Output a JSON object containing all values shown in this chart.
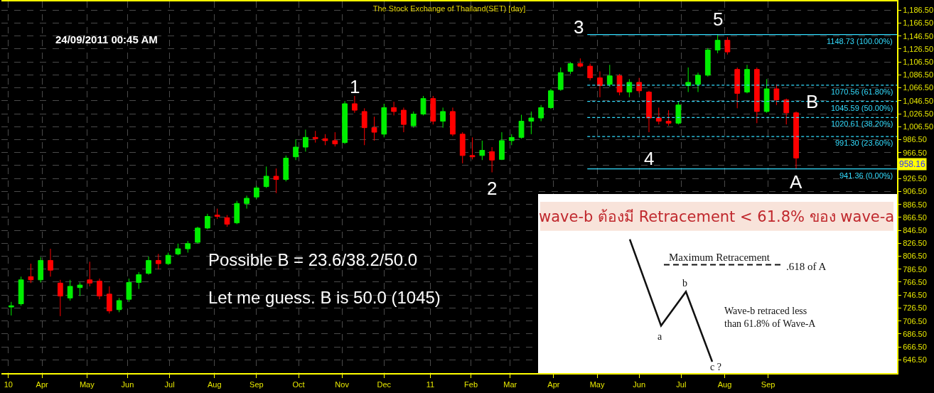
{
  "chart_data": {
    "type": "candlestick",
    "title": "The Stock Exchange of Thailand(SET) [day]",
    "x": [
      "2010-03-10",
      "2010-03-17",
      "2010-03-24",
      "2010-03-31",
      "2010-04-07",
      "2010-04-14",
      "2010-04-21",
      "2010-04-28",
      "2010-05-05",
      "2010-05-12",
      "2010-05-19",
      "2010-05-26",
      "2010-06-02",
      "2010-06-09",
      "2010-06-16",
      "2010-06-23",
      "2010-06-30",
      "2010-07-07",
      "2010-07-14",
      "2010-07-21",
      "2010-07-28",
      "2010-08-04",
      "2010-08-11",
      "2010-08-18",
      "2010-08-25",
      "2010-09-01",
      "2010-09-08",
      "2010-09-15",
      "2010-09-22",
      "2010-09-29",
      "2010-10-06",
      "2010-10-13",
      "2010-10-20",
      "2010-10-27",
      "2010-11-03",
      "2010-11-10",
      "2010-11-17",
      "2010-11-24",
      "2010-12-01",
      "2010-12-08",
      "2010-12-15",
      "2010-12-22",
      "2010-12-29",
      "2011-01-05",
      "2011-01-12",
      "2011-01-19",
      "2011-01-26",
      "2011-02-02",
      "2011-02-09",
      "2011-02-16",
      "2011-02-23",
      "2011-03-02",
      "2011-03-09",
      "2011-03-16",
      "2011-03-23",
      "2011-03-30",
      "2011-04-06",
      "2011-04-13",
      "2011-04-20",
      "2011-04-27",
      "2011-05-04",
      "2011-05-11",
      "2011-05-18",
      "2011-05-25",
      "2011-06-01",
      "2011-06-08",
      "2011-06-15",
      "2011-06-22",
      "2011-06-29",
      "2011-07-06",
      "2011-07-13",
      "2011-07-20",
      "2011-07-27",
      "2011-08-03",
      "2011-08-10",
      "2011-08-17",
      "2011-08-24",
      "2011-08-31",
      "2011-09-07",
      "2011-09-14",
      "2011-09-21"
    ],
    "ohlc": [
      [
        728,
        736,
        715,
        730
      ],
      [
        733,
        775,
        730,
        770
      ],
      [
        775,
        795,
        765,
        770
      ],
      [
        770,
        805,
        766,
        800
      ],
      [
        800,
        818,
        775,
        785
      ],
      [
        765,
        770,
        714,
        745
      ],
      [
        742,
        770,
        738,
        760
      ],
      [
        758,
        766,
        745,
        762
      ],
      [
        770,
        798,
        760,
        765
      ],
      [
        768,
        772,
        740,
        745
      ],
      [
        748,
        760,
        718,
        722
      ],
      [
        724,
        742,
        720,
        738
      ],
      [
        740,
        772,
        736,
        766
      ],
      [
        766,
        782,
        756,
        778
      ],
      [
        780,
        806,
        778,
        800
      ],
      [
        800,
        810,
        786,
        795
      ],
      [
        795,
        812,
        793,
        808
      ],
      [
        810,
        826,
        808,
        818
      ],
      [
        818,
        830,
        812,
        826
      ],
      [
        828,
        852,
        826,
        850
      ],
      [
        850,
        872,
        848,
        868
      ],
      [
        870,
        880,
        864,
        868
      ],
      [
        866,
        870,
        852,
        856
      ],
      [
        858,
        892,
        856,
        888
      ],
      [
        888,
        900,
        880,
        896
      ],
      [
        898,
        915,
        895,
        912
      ],
      [
        914,
        945,
        912,
        930
      ],
      [
        930,
        942,
        904,
        925
      ],
      [
        925,
        962,
        922,
        958
      ],
      [
        960,
        987,
        955,
        975
      ],
      [
        975,
        1002,
        968,
        990
      ],
      [
        990,
        1000,
        982,
        988
      ],
      [
        988,
        995,
        978,
        985
      ],
      [
        985,
        998,
        976,
        980
      ],
      [
        982,
        1046,
        980,
        1042
      ],
      [
        1042,
        1054,
        1028,
        1032
      ],
      [
        1030,
        1035,
        978,
        1005
      ],
      [
        1005,
        1022,
        985,
        998
      ],
      [
        995,
        1042,
        990,
        1036
      ],
      [
        1036,
        1045,
        1024,
        1030
      ],
      [
        1032,
        1036,
        998,
        1010
      ],
      [
        1008,
        1030,
        1005,
        1026
      ],
      [
        1026,
        1054,
        1024,
        1050
      ],
      [
        1050,
        1054,
        1010,
        1015
      ],
      [
        1015,
        1036,
        1005,
        1030
      ],
      [
        1030,
        1036,
        992,
        995
      ],
      [
        995,
        998,
        950,
        962
      ],
      [
        962,
        990,
        956,
        960
      ],
      [
        962,
        985,
        955,
        970
      ],
      [
        968,
        975,
        936,
        955
      ],
      [
        956,
        998,
        955,
        985
      ],
      [
        985,
        995,
        978,
        990
      ],
      [
        990,
        1025,
        988,
        1015
      ],
      [
        1015,
        1030,
        995,
        1020
      ],
      [
        1020,
        1040,
        1015,
        1036
      ],
      [
        1036,
        1065,
        1034,
        1062
      ],
      [
        1064,
        1098,
        1062,
        1090
      ],
      [
        1092,
        1106,
        1088,
        1104
      ],
      [
        1104,
        1112,
        1098,
        1100
      ],
      [
        1100,
        1104,
        1078,
        1082
      ],
      [
        1082,
        1092,
        1052,
        1070
      ],
      [
        1072,
        1102,
        1068,
        1085
      ],
      [
        1085,
        1088,
        1055,
        1060
      ],
      [
        1060,
        1080,
        1052,
        1075
      ],
      [
        1075,
        1082,
        1058,
        1062
      ],
      [
        1060,
        1062,
        998,
        1020
      ],
      [
        1020,
        1036,
        1010,
        1015
      ],
      [
        1015,
        1032,
        1008,
        1012
      ],
      [
        1012,
        1045,
        1010,
        1040
      ],
      [
        1070,
        1098,
        1060,
        1075
      ],
      [
        1072,
        1090,
        1060,
        1086
      ],
      [
        1086,
        1128,
        1084,
        1125
      ],
      [
        1125,
        1148.73,
        1120,
        1140
      ],
      [
        1140,
        1145,
        1118,
        1122
      ],
      [
        1095,
        1098,
        1035,
        1058
      ],
      [
        1060,
        1102,
        1058,
        1095
      ],
      [
        1095,
        1098,
        1012,
        1030
      ],
      [
        1030,
        1080,
        1028,
        1065
      ],
      [
        1065,
        1072,
        1040,
        1048
      ],
      [
        1048,
        1050,
        1010,
        1028
      ],
      [
        1028,
        1030,
        941.36,
        958.16
      ]
    ],
    "colors": [
      "#00ee00",
      "#00ee00",
      "#ff0000",
      "#00ee00",
      "#ff0000",
      "#ff0000",
      "#00ee00",
      "#00ee00",
      "#ff0000",
      "#ff0000",
      "#ff0000",
      "#00ee00",
      "#00ee00",
      "#00ee00",
      "#00ee00",
      "#ff0000",
      "#00ee00",
      "#00ee00",
      "#00ee00",
      "#00ee00",
      "#00ee00",
      "#ff0000",
      "#ff0000",
      "#00ee00",
      "#00ee00",
      "#00ee00",
      "#00ee00",
      "#ff0000",
      "#00ee00",
      "#00ee00",
      "#00ee00",
      "#ff0000",
      "#ff0000",
      "#ff0000",
      "#00ee00",
      "#ff0000",
      "#ff0000",
      "#ff0000",
      "#00ee00",
      "#ff0000",
      "#ff0000",
      "#00ee00",
      "#00ee00",
      "#ff0000",
      "#00ee00",
      "#ff0000",
      "#ff0000",
      "#ff0000",
      "#00ee00",
      "#ff0000",
      "#00ee00",
      "#00ee00",
      "#00ee00",
      "#00ee00",
      "#00ee00",
      "#00ee00",
      "#00ee00",
      "#00ee00",
      "#ff0000",
      "#ff0000",
      "#ff0000",
      "#00ee00",
      "#ff0000",
      "#00ee00",
      "#ff0000",
      "#ff0000",
      "#ff0000",
      "#ff0000",
      "#00ee00",
      "#00ee00",
      "#00ee00",
      "#00ee00",
      "#00ee00",
      "#ff0000",
      "#ff0000",
      "#00ee00",
      "#ff0000",
      "#00ee00",
      "#ff0000",
      "#ff0000",
      "#ff0000"
    ],
    "series": [
      {
        "type": "line",
        "name": "1148.73 (100.00%)",
        "color": "#33ddff",
        "line_style": "solid",
        "x": [
          "2011-04-25",
          "2011-12-02"
        ],
        "values": [
          1148.73,
          1148.73
        ]
      },
      {
        "type": "line",
        "name": "1070.56 (61.80%)",
        "color": "#33ddff",
        "line_style": "dashed",
        "x": [
          "2011-04-25",
          "2011-12-02"
        ],
        "values": [
          1070.56,
          1070.56
        ]
      },
      {
        "type": "line",
        "name": "1045.59 (50.00%)",
        "color": "#33ddff",
        "line_style": "dashed",
        "x": [
          "2011-04-25",
          "2011-12-02"
        ],
        "values": [
          1045.59,
          1045.59
        ]
      },
      {
        "type": "line",
        "name": "1020.61 (38.20%)",
        "color": "#33ddff",
        "line_style": "dashed",
        "x": [
          "2011-04-25",
          "2011-12-02"
        ],
        "values": [
          1020.61,
          1020.61
        ]
      },
      {
        "type": "line",
        "name": "991.30 (23.60%)",
        "color": "#33ddff",
        "line_style": "dashed",
        "x": [
          "2011-04-25",
          "2011-12-02"
        ],
        "values": [
          991.3,
          991.3
        ]
      },
      {
        "type": "line",
        "name": "941.36 (0.00%)",
        "color": "#33ddff",
        "line_style": "solid",
        "x": [
          "2011-04-25",
          "2011-12-02"
        ],
        "values": [
          941.36,
          941.36
        ]
      }
    ],
    "xlim": [
      "2010-03-03",
      "2011-12-02"
    ],
    "xticks": [
      {
        "value": "2010-03-08",
        "label": "10"
      },
      {
        "value": "2010-04-01",
        "label": "Apr"
      },
      {
        "value": "2010-05-03",
        "label": "May"
      },
      {
        "value": "2010-06-01",
        "label": "Jun"
      },
      {
        "value": "2010-07-01",
        "label": "Jul"
      },
      {
        "value": "2010-08-02",
        "label": "Aug"
      },
      {
        "value": "2010-09-01",
        "label": "Sep"
      },
      {
        "value": "2010-10-01",
        "label": "Oct"
      },
      {
        "value": "2010-11-01",
        "label": "Nov"
      },
      {
        "value": "2010-12-01",
        "label": "Dec"
      },
      {
        "value": "2011-01-03",
        "label": "11"
      },
      {
        "value": "2011-02-01",
        "label": "Feb"
      },
      {
        "value": "2011-03-01",
        "label": "Mar"
      },
      {
        "value": "2011-04-01",
        "label": "Apr"
      },
      {
        "value": "2011-05-02",
        "label": "May"
      },
      {
        "value": "2011-06-01",
        "label": "Jun"
      },
      {
        "value": "2011-07-01",
        "label": "Jul"
      },
      {
        "value": "2011-08-01",
        "label": "Aug"
      },
      {
        "value": "2011-09-01",
        "label": "Sep"
      }
    ],
    "ylim": [
      626,
      1200
    ],
    "yticks": [
      {
        "value": 646.5,
        "label": "646.50"
      },
      {
        "value": 666.5,
        "label": "666.50"
      },
      {
        "value": 686.5,
        "label": "686.50"
      },
      {
        "value": 706.5,
        "label": "706.50"
      },
      {
        "value": 726.5,
        "label": "726.50"
      },
      {
        "value": 746.5,
        "label": "746.50"
      },
      {
        "value": 766.5,
        "label": "766.50"
      },
      {
        "value": 786.5,
        "label": "786.50"
      },
      {
        "value": 806.5,
        "label": "806.50"
      },
      {
        "value": 826.5,
        "label": "826.50"
      },
      {
        "value": 846.5,
        "label": "846.50"
      },
      {
        "value": 866.5,
        "label": "866.50"
      },
      {
        "value": 886.5,
        "label": "886.50"
      },
      {
        "value": 906.5,
        "label": "906.50"
      },
      {
        "value": 926.5,
        "label": "926.50"
      },
      {
        "value": 946.5,
        "label": null
      },
      {
        "value": 966.5,
        "label": "966.50"
      },
      {
        "value": 986.5,
        "label": "986.50"
      },
      {
        "value": 1006.5,
        "label": "1,006.50"
      },
      {
        "value": 1026.5,
        "label": "1,026.50"
      },
      {
        "value": 1046.5,
        "label": "1,046.50"
      },
      {
        "value": 1066.5,
        "label": "1,066.50"
      },
      {
        "value": 1086.5,
        "label": "1,086.50"
      },
      {
        "value": 1106.5,
        "label": "1,106.50"
      },
      {
        "value": 1126.5,
        "label": "1,126.50"
      },
      {
        "value": 1146.5,
        "label": "1,146.50"
      },
      {
        "value": 1166.5,
        "label": "1,166.50"
      },
      {
        "value": 1186.5,
        "label": "1,186.50"
      }
    ],
    "grid": true,
    "legend": false,
    "annotations": [
      "24/09/2011 00:45 AM",
      "Possible B = 23.6/38.2/50.0",
      "Let me guess. B is 50.0 (1045)",
      "1",
      "2",
      "3",
      "4",
      "5",
      "A",
      "B",
      "958.16",
      "wave-b ต้องมี Retracement < 61.8% ของ wave-a",
      "Maximum Retracement",
      ".618 of A",
      "b",
      "a",
      "c ?",
      "Wave-b retraced less than 61.8% of Wave-A"
    ]
  }
}
